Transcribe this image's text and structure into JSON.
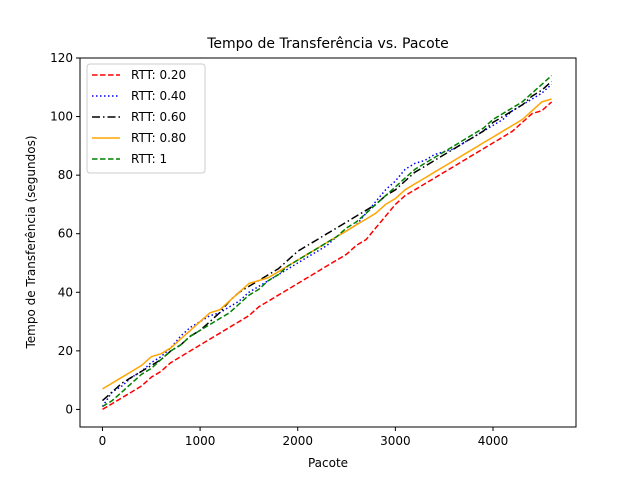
{
  "chart_data": {
    "type": "line",
    "title": "Tempo de Transferência vs. Pacote",
    "xlabel": "Pacote",
    "ylabel": "Tempo de Transferência (segundos)",
    "xlim": [
      -230,
      4850
    ],
    "ylim": [
      -6,
      120
    ],
    "xticks": [
      0,
      1000,
      2000,
      3000,
      4000
    ],
    "yticks": [
      0,
      20,
      40,
      60,
      80,
      100,
      120
    ],
    "grid": false,
    "legend_position": "top-left",
    "series": [
      {
        "name": "RTT: 0.20",
        "color": "#ff0000",
        "dash": "dashed",
        "x": [
          0,
          100,
          250,
          400,
          500,
          600,
          700,
          800,
          900,
          1000,
          1100,
          1200,
          1300,
          1400,
          1500,
          1600,
          1700,
          1800,
          1900,
          2000,
          2100,
          2200,
          2300,
          2400,
          2500,
          2600,
          2700,
          2800,
          2900,
          3000,
          3100,
          3200,
          3300,
          3400,
          3500,
          3600,
          3700,
          3800,
          3900,
          4000,
          4100,
          4200,
          4300,
          4400,
          4500,
          4600
        ],
        "y": [
          0,
          2,
          5,
          8,
          11,
          13,
          16,
          18,
          20,
          22,
          24,
          26,
          28,
          30,
          32,
          35,
          37,
          39,
          41,
          43,
          45,
          47,
          49,
          51,
          53,
          56,
          58,
          62,
          66,
          70,
          73,
          75,
          77,
          79,
          81,
          83,
          85,
          87,
          89,
          91,
          93,
          95,
          98,
          101,
          102,
          105
        ]
      },
      {
        "name": "RTT: 0.40",
        "color": "#0000ff",
        "dash": "dotted",
        "x": [
          0,
          100,
          200,
          300,
          400,
          500,
          600,
          700,
          800,
          900,
          1000,
          1100,
          1200,
          1300,
          1400,
          1500,
          1600,
          1700,
          1800,
          1900,
          2000,
          2100,
          2200,
          2300,
          2400,
          2500,
          2600,
          2700,
          2800,
          2900,
          3000,
          3100,
          3200,
          3300,
          3400,
          3500,
          3600,
          3700,
          3800,
          3900,
          4000,
          4100,
          4200,
          4300,
          4400,
          4500,
          4600
        ],
        "y": [
          1,
          6,
          8,
          11,
          13,
          16,
          18,
          21,
          25,
          28,
          30,
          32,
          33,
          35,
          37,
          40,
          42,
          44,
          46,
          48,
          50,
          52,
          54,
          56,
          59,
          61,
          63,
          67,
          71,
          75,
          78,
          82,
          84,
          85,
          87,
          88,
          89,
          91,
          93,
          95,
          97,
          99,
          102,
          104,
          106,
          108,
          111
        ]
      },
      {
        "name": "RTT: 0.60",
        "color": "#000000",
        "dash": "dashdot",
        "x": [
          0,
          100,
          200,
          300,
          400,
          500,
          600,
          700,
          800,
          900,
          1000,
          1100,
          1200,
          1300,
          1400,
          1500,
          1600,
          1700,
          1800,
          1900,
          2000,
          2100,
          2200,
          2300,
          2400,
          2500,
          2600,
          2700,
          2800,
          2900,
          3000,
          3100,
          3200,
          3300,
          3400,
          3500,
          3600,
          3700,
          3800,
          3900,
          4000,
          4100,
          4200,
          4300,
          4400,
          4500,
          4600
        ],
        "y": [
          3,
          6,
          9,
          11,
          13,
          15,
          17,
          20,
          22,
          25,
          27,
          30,
          33,
          37,
          40,
          42,
          44,
          46,
          48,
          51,
          54,
          56,
          58,
          60,
          62,
          64,
          66,
          68,
          70,
          73,
          75,
          78,
          81,
          83,
          85,
          87,
          89,
          91,
          93,
          95,
          98,
          100,
          102,
          104,
          107,
          109,
          112
        ]
      },
      {
        "name": "RTT: 0.80",
        "color": "#ffa500",
        "dash": "solid",
        "x": [
          0,
          100,
          200,
          300,
          400,
          500,
          600,
          700,
          800,
          900,
          1000,
          1100,
          1200,
          1300,
          1400,
          1500,
          1600,
          1700,
          1800,
          1900,
          2000,
          2100,
          2200,
          2300,
          2400,
          2500,
          2600,
          2700,
          2800,
          2900,
          3000,
          3100,
          3200,
          3300,
          3400,
          3500,
          3600,
          3700,
          3800,
          3900,
          4000,
          4100,
          4200,
          4300,
          4400,
          4500,
          4600
        ],
        "y": [
          7,
          9,
          11,
          13,
          15,
          18,
          19,
          21,
          24,
          27,
          30,
          33,
          34,
          37,
          40,
          43,
          44,
          45,
          47,
          49,
          51,
          53,
          55,
          57,
          59,
          61,
          63,
          65,
          67,
          70,
          72,
          75,
          77,
          79,
          81,
          83,
          85,
          87,
          89,
          91,
          93,
          95,
          97,
          99,
          102,
          105,
          106
        ]
      },
      {
        "name": "RTT: 1",
        "color": "#008000",
        "dash": "dashed",
        "x": [
          0,
          100,
          200,
          300,
          400,
          500,
          600,
          700,
          800,
          900,
          1000,
          1100,
          1200,
          1300,
          1400,
          1500,
          1600,
          1700,
          1800,
          1900,
          2000,
          2100,
          2200,
          2300,
          2400,
          2500,
          2600,
          2700,
          2800,
          2900,
          3000,
          3100,
          3200,
          3300,
          3400,
          3500,
          3600,
          3700,
          3800,
          3900,
          4000,
          4100,
          4200,
          4300,
          4400,
          4500,
          4600
        ],
        "y": [
          1,
          3,
          6,
          9,
          12,
          14,
          17,
          20,
          22,
          25,
          27,
          29,
          31,
          33,
          36,
          39,
          41,
          44,
          46,
          49,
          51,
          53,
          55,
          57,
          59,
          62,
          64,
          67,
          70,
          73,
          76,
          79,
          82,
          84,
          86,
          88,
          90,
          92,
          94,
          96,
          99,
          101,
          103,
          105,
          108,
          111,
          114
        ]
      }
    ]
  }
}
